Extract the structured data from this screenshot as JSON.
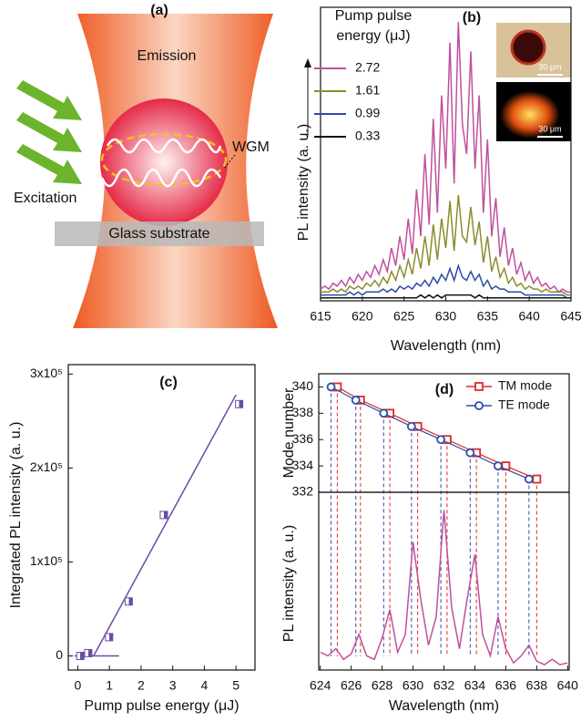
{
  "diagram": {
    "label": "(a)",
    "emission": "Emission",
    "wgm": "WGM",
    "excitation": "Excitation",
    "substrate": "Glass substrate"
  },
  "chart_data": [
    {
      "type": "line",
      "label": "(b)",
      "legend_title": [
        "Pump pulse",
        "energy (μJ)"
      ],
      "x_label": "Wavelength (nm)",
      "y_label": "PL intensity (a. u.)",
      "xlim": [
        615,
        645
      ],
      "xticks": [
        615,
        620,
        625,
        630,
        635,
        640,
        645
      ],
      "ylim": [
        0,
        100
      ],
      "inset_scale_labels": [
        "30 μm",
        "30 μm"
      ],
      "x": [
        615,
        615.5,
        616,
        616.5,
        617,
        617.5,
        618,
        618.5,
        619,
        619.5,
        620,
        620.5,
        621,
        621.5,
        622,
        622.5,
        623,
        623.5,
        624,
        624.5,
        625,
        625.5,
        626,
        626.5,
        627,
        627.5,
        628,
        628.5,
        629,
        629.5,
        630,
        630.5,
        631,
        631.5,
        632,
        632.5,
        633,
        633.5,
        634,
        634.5,
        635,
        635.5,
        636,
        636.5,
        637,
        637.5,
        638,
        638.5,
        639,
        639.5,
        640,
        640.5,
        641,
        641.5,
        642,
        642.5,
        643,
        643.5,
        644,
        644.5,
        645
      ],
      "series": [
        {
          "name": "2.72",
          "color": "#c0509c",
          "values": [
            4,
            5,
            4,
            6,
            5,
            7,
            5,
            8,
            6,
            9,
            7,
            10,
            8,
            12,
            9,
            14,
            10,
            18,
            12,
            22,
            14,
            28,
            16,
            38,
            22,
            50,
            26,
            62,
            30,
            70,
            45,
            88,
            40,
            95,
            60,
            50,
            85,
            45,
            70,
            30,
            55,
            22,
            35,
            15,
            25,
            12,
            18,
            9,
            13,
            7,
            10,
            6,
            8,
            5,
            6,
            4,
            5,
            3,
            4,
            3,
            3
          ]
        },
        {
          "name": "1.61",
          "color": "#8c8c2c",
          "values": [
            3,
            3,
            3,
            4,
            3,
            4,
            3,
            5,
            4,
            5,
            4,
            6,
            5,
            7,
            5,
            8,
            6,
            10,
            7,
            12,
            8,
            14,
            9,
            18,
            11,
            22,
            12,
            26,
            14,
            28,
            18,
            34,
            17,
            36,
            22,
            20,
            32,
            19,
            27,
            13,
            22,
            10,
            15,
            8,
            11,
            6,
            8,
            5,
            6,
            4,
            5,
            4,
            4,
            3,
            4,
            3,
            3,
            3,
            3,
            2,
            2
          ]
        },
        {
          "name": "0.99",
          "color": "#2c4ca8",
          "values": [
            2,
            2,
            2,
            2,
            2,
            2,
            2,
            3,
            2,
            3,
            2,
            3,
            3,
            3,
            3,
            4,
            3,
            4,
            3,
            5,
            4,
            5,
            4,
            6,
            5,
            7,
            5,
            8,
            6,
            9,
            7,
            11,
            7,
            12,
            8,
            7,
            10,
            7,
            9,
            5,
            7,
            4,
            5,
            4,
            4,
            3,
            3,
            3,
            3,
            2,
            2,
            2,
            2,
            2,
            2,
            2,
            2,
            2,
            2,
            1,
            1
          ]
        },
        {
          "name": "0.33",
          "color": "#111111",
          "values": [
            1,
            1,
            1,
            1,
            1,
            1,
            1,
            1,
            1,
            1,
            1,
            1,
            1,
            1,
            1,
            1,
            1,
            1,
            1,
            1,
            1,
            1,
            1,
            1,
            2,
            1,
            2,
            1,
            2,
            1,
            2,
            2,
            2,
            2,
            2,
            2,
            2,
            1,
            2,
            1,
            1,
            1,
            1,
            1,
            1,
            1,
            1,
            1,
            1,
            1,
            1,
            1,
            1,
            1,
            1,
            1,
            1,
            1,
            1,
            1,
            1
          ]
        }
      ]
    },
    {
      "type": "scatter",
      "label": "(c)",
      "x_label": "Pump pulse energy (μJ)",
      "y_label": "Integrated PL intensity (a. u.)",
      "xlim": [
        -0.3,
        5.6
      ],
      "xticks": [
        0,
        1,
        2,
        3,
        4,
        5
      ],
      "ylim": [
        -15000,
        310000
      ],
      "yticks": [
        0,
        {
          "value": 100000,
          "label": "1x10⁵"
        },
        {
          "value": 200000,
          "label": "2x10⁵"
        },
        {
          "value": 300000,
          "label": "3x10⁵"
        }
      ],
      "color": "#6a4ca8",
      "x": [
        0.08,
        0.33,
        0.99,
        1.61,
        2.72,
        5.1
      ],
      "values": [
        0,
        3000,
        20000,
        58000,
        150000,
        268000
      ],
      "fit_lines": [
        {
          "x": [
            0.5,
            5
          ],
          "values": [
            0,
            278000
          ]
        },
        {
          "x": [
            -0.1,
            1.3
          ],
          "values": [
            0,
            0
          ]
        }
      ]
    },
    {
      "type": "mode",
      "label": "(d)",
      "y_label": "Mode number",
      "xlim": [
        623.9,
        640.1
      ],
      "ylim": [
        332,
        341
      ],
      "yticks": [
        332,
        334,
        336,
        338,
        340
      ],
      "series": [
        {
          "name": "TM mode",
          "color": "#e02828",
          "x": [
            625.1,
            626.6,
            628.5,
            630.3,
            632.2,
            634.1,
            636.0,
            638.0
          ],
          "values": [
            340,
            339,
            338,
            337,
            336,
            335,
            334,
            333
          ]
        },
        {
          "name": "TE mode",
          "color": "#2c4ca8",
          "x": [
            624.7,
            626.3,
            628.1,
            629.9,
            631.8,
            633.7,
            635.5,
            637.5
          ],
          "values": [
            340,
            339,
            338,
            337,
            336,
            335,
            334,
            333
          ]
        }
      ]
    },
    {
      "type": "line",
      "x_label": "Wavelength (nm)",
      "y_label": "PL intensity (a. u.)",
      "xlim": [
        623.9,
        640.1
      ],
      "xticks": [
        624,
        626,
        628,
        630,
        632,
        634,
        636,
        638,
        640
      ],
      "ylim": [
        0,
        100
      ],
      "color": "#c0509c",
      "x": [
        624,
        624.5,
        625,
        625.5,
        626,
        626.5,
        627,
        627.5,
        628,
        628.5,
        629,
        629.5,
        630,
        630.5,
        631,
        631.5,
        632,
        632.5,
        633,
        633.5,
        634,
        634.5,
        635,
        635.5,
        636,
        636.5,
        637,
        637.5,
        638,
        638.5,
        639,
        639.5,
        640
      ],
      "values": [
        10,
        8,
        12,
        6,
        9,
        20,
        8,
        6,
        18,
        34,
        10,
        20,
        72,
        40,
        14,
        30,
        90,
        35,
        12,
        40,
        65,
        20,
        8,
        30,
        12,
        4,
        8,
        14,
        5,
        3,
        6,
        3,
        4
      ]
    }
  ]
}
